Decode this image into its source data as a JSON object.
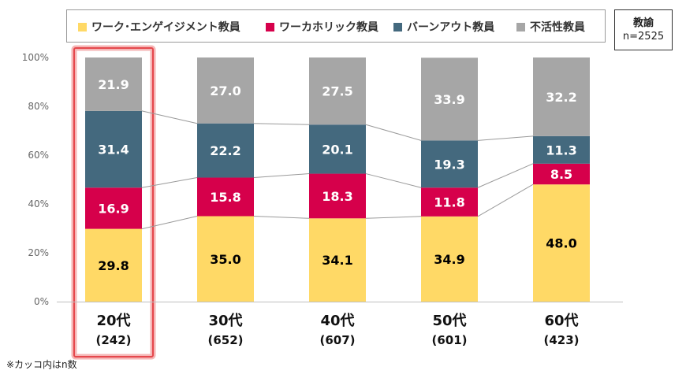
{
  "legend_info": {
    "title": "教諭",
    "n": "n=2525"
  },
  "footnote": "※カッコ内はn数",
  "chart_data": {
    "type": "bar",
    "stacked": true,
    "categories": [
      "20代",
      "30代",
      "40代",
      "50代",
      "60代"
    ],
    "category_counts": [
      "(242)",
      "(652)",
      "(607)",
      "(601)",
      "(423)"
    ],
    "ylim": [
      0,
      100
    ],
    "yticks": [
      "0%",
      "20%",
      "40%",
      "60%",
      "80%",
      "100%"
    ],
    "legend_position": "top",
    "highlighted_category": "20代",
    "series": [
      {
        "name": "ワーク･エンゲイジメント教員",
        "color": "#FFD966",
        "label_color": "#000000",
        "values": [
          29.8,
          35.0,
          34.1,
          34.9,
          48.0
        ]
      },
      {
        "name": "ワーカホリック教員",
        "color": "#D6004B",
        "label_color": "#FFFFFF",
        "values": [
          16.9,
          15.8,
          18.3,
          11.8,
          8.5
        ]
      },
      {
        "name": "バーンアウト教員",
        "color": "#44697E",
        "label_color": "#FFFFFF",
        "values": [
          31.4,
          22.2,
          20.1,
          19.3,
          11.3
        ]
      },
      {
        "name": "不活性教員",
        "color": "#A6A6A6",
        "label_color": "#FFFFFF",
        "values": [
          21.9,
          27.0,
          27.5,
          33.9,
          32.2
        ]
      }
    ]
  }
}
